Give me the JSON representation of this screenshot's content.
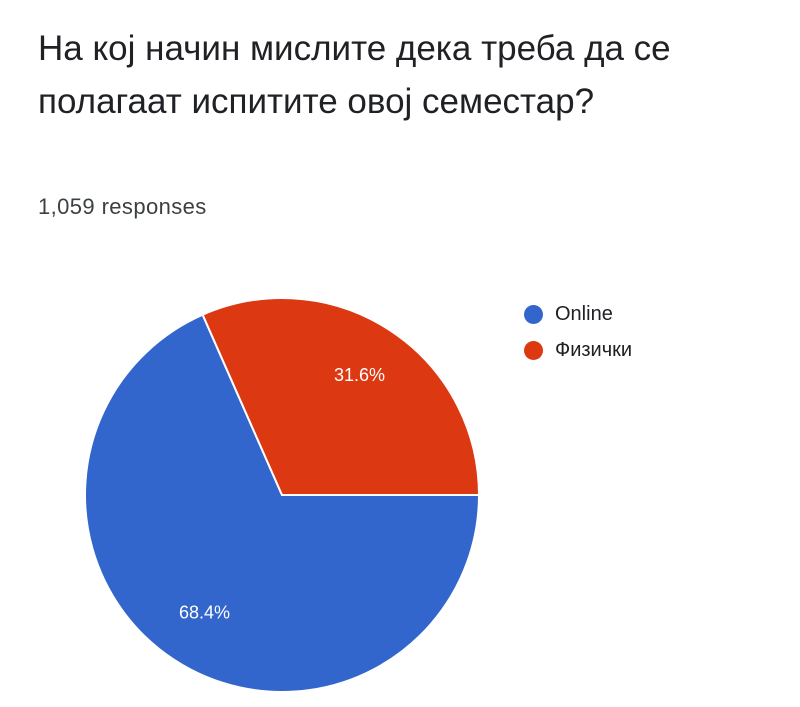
{
  "question": {
    "title": "На кој начин мислите дека треба да се полагаат испитите овој семестар?",
    "response_count": "1,059 responses"
  },
  "chart_data": {
    "type": "pie",
    "categories": [
      "Online",
      "Физички"
    ],
    "values": [
      68.4,
      31.6
    ],
    "value_labels": [
      "68.4%",
      "31.6%"
    ],
    "colors": [
      "#3366cc",
      "#dc3912"
    ],
    "legend_position": "right"
  },
  "legend": {
    "items": [
      {
        "label": "Online",
        "color": "#3366cc"
      },
      {
        "label": "Физички",
        "color": "#dc3912"
      }
    ]
  }
}
